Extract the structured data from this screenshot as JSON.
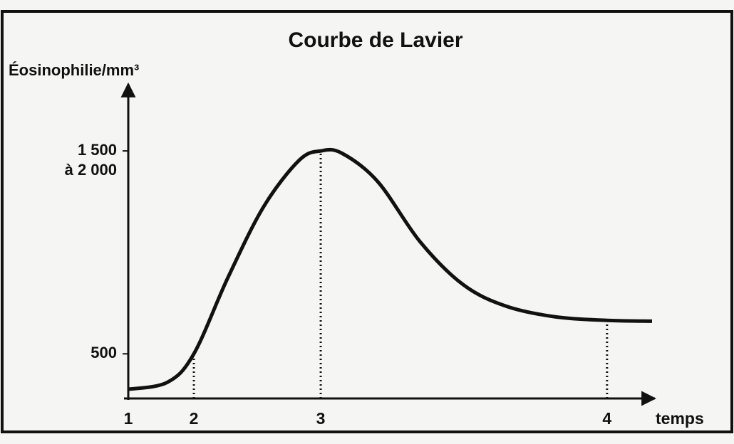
{
  "chart_data": {
    "type": "line",
    "title": "Courbe de Lavier",
    "ylabel": "Éosinophilie/mm³",
    "xlabel": "temps",
    "x": [
      0,
      0.82,
      1.37,
      2.08,
      2.83,
      3.57,
      4.02,
      4.46,
      5.21,
      6.1,
      7.0,
      7.89,
      8.93,
      10,
      10.94
    ],
    "series": [
      {
        "name": "Éosinophilie",
        "color": "#111111",
        "values": [
          325,
          360,
          500,
          875,
          1226,
          1454,
          1500,
          1489,
          1349,
          1051,
          840,
          735,
          682,
          665,
          661
        ]
      }
    ],
    "xlim": [
      0,
      11
    ],
    "xticks": [
      {
        "value": 0,
        "label": "1"
      },
      {
        "value": 1.37,
        "label": "2"
      },
      {
        "value": 4.02,
        "label": "3"
      },
      {
        "value": 10,
        "label": "4"
      }
    ],
    "ylim": [
      280,
      1830
    ],
    "yticks": [
      500,
      {
        "value": 1500,
        "label": [
          "1 500",
          "à 2 000"
        ]
      }
    ]
  }
}
